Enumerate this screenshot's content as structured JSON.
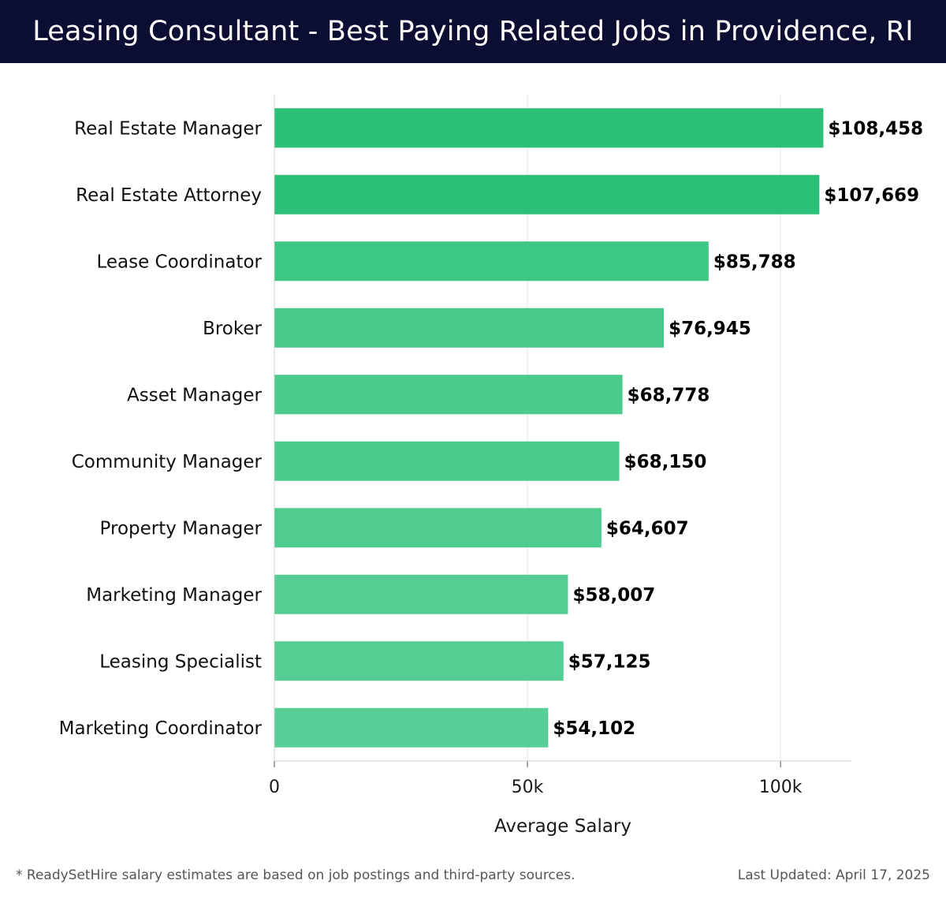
{
  "header": {
    "title": "Leasing Consultant - Best Paying Related Jobs in Providence, RI"
  },
  "chart_data": {
    "type": "bar",
    "orientation": "horizontal",
    "categories": [
      "Real Estate Manager",
      "Real Estate Attorney",
      "Lease Coordinator",
      "Broker",
      "Asset Manager",
      "Community Manager",
      "Property Manager",
      "Marketing Manager",
      "Leasing Specialist",
      "Marketing Coordinator"
    ],
    "values": [
      108458,
      107669,
      85788,
      76945,
      68778,
      68150,
      64607,
      58007,
      57125,
      54102
    ],
    "value_labels": [
      "$108,458",
      "$107,669",
      "$85,788",
      "$76,945",
      "$68,778",
      "$68,150",
      "$64,607",
      "$58,007",
      "$57,125",
      "$54,102"
    ],
    "xlabel": "Average Salary",
    "xlim": [
      0,
      114000
    ],
    "xticks": [
      0,
      50000,
      100000
    ],
    "xtick_labels": [
      "0",
      "50k",
      "100k"
    ],
    "grid": true,
    "bar_color_high": "#2bbf78",
    "bar_color_low": "#58cf96"
  },
  "footer": {
    "note": "* ReadySetHire salary estimates are based on job postings and third-party sources.",
    "updated": "Last Updated: April 17, 2025"
  }
}
